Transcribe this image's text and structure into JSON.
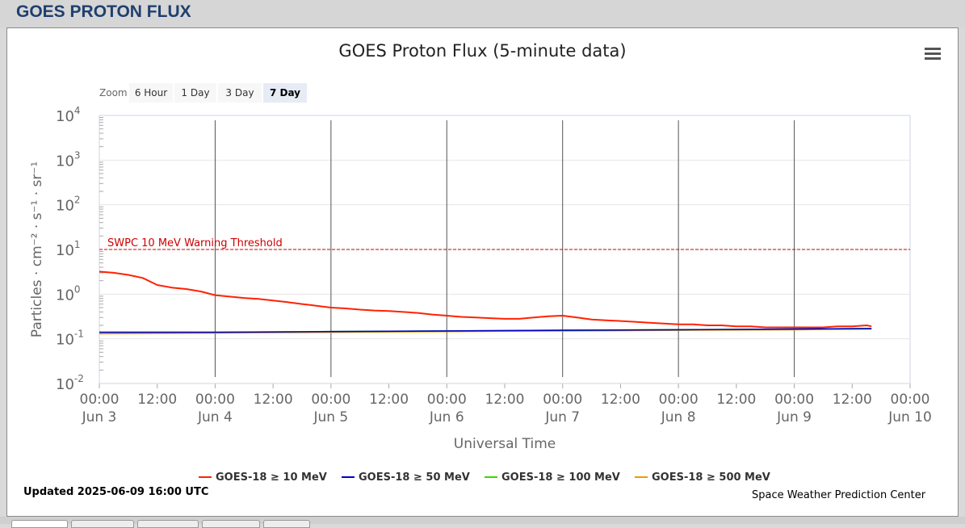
{
  "page": {
    "title": "GOES PROTON FLUX"
  },
  "chart_data": {
    "type": "line",
    "title": "GOES Proton Flux (5-minute data)",
    "xlabel": "Universal Time",
    "ylabel": "Particles · cm⁻² · s⁻¹ · sr⁻¹",
    "yscale": "log",
    "ylim": [
      0.01,
      10000
    ],
    "y_ticks": [
      {
        "value": 0.01,
        "base": "10",
        "exp": "-2"
      },
      {
        "value": 0.1,
        "base": "10",
        "exp": "-1"
      },
      {
        "value": 1,
        "base": "10",
        "exp": "0"
      },
      {
        "value": 10,
        "base": "10",
        "exp": "1"
      },
      {
        "value": 100,
        "base": "10",
        "exp": "2"
      },
      {
        "value": 1000,
        "base": "10",
        "exp": "3"
      },
      {
        "value": 10000,
        "base": "10",
        "exp": "4"
      }
    ],
    "xlim": [
      "2025-06-03 00:00",
      "2025-06-10 00:00"
    ],
    "x_ticks": [
      {
        "time": "2025-06-03 00:00",
        "line1": "00:00",
        "line2": "Jun 3"
      },
      {
        "time": "2025-06-03 12:00",
        "line1": "12:00",
        "line2": ""
      },
      {
        "time": "2025-06-04 00:00",
        "line1": "00:00",
        "line2": "Jun 4"
      },
      {
        "time": "2025-06-04 12:00",
        "line1": "12:00",
        "line2": ""
      },
      {
        "time": "2025-06-05 00:00",
        "line1": "00:00",
        "line2": "Jun 5"
      },
      {
        "time": "2025-06-05 12:00",
        "line1": "12:00",
        "line2": ""
      },
      {
        "time": "2025-06-06 00:00",
        "line1": "00:00",
        "line2": "Jun 6"
      },
      {
        "time": "2025-06-06 12:00",
        "line1": "12:00",
        "line2": ""
      },
      {
        "time": "2025-06-07 00:00",
        "line1": "00:00",
        "line2": "Jun 7"
      },
      {
        "time": "2025-06-07 12:00",
        "line1": "12:00",
        "line2": ""
      },
      {
        "time": "2025-06-08 00:00",
        "line1": "00:00",
        "line2": "Jun 8"
      },
      {
        "time": "2025-06-08 12:00",
        "line1": "12:00",
        "line2": ""
      },
      {
        "time": "2025-06-09 00:00",
        "line1": "00:00",
        "line2": "Jun 9"
      },
      {
        "time": "2025-06-09 12:00",
        "line1": "12:00",
        "line2": ""
      },
      {
        "time": "2025-06-10 00:00",
        "line1": "00:00",
        "line2": "Jun 10"
      }
    ],
    "day_lines": [
      "2025-06-04 00:00",
      "2025-06-05 00:00",
      "2025-06-06 00:00",
      "2025-06-07 00:00",
      "2025-06-08 00:00",
      "2025-06-09 00:00"
    ],
    "threshold": {
      "value": 10,
      "label": "SWPC 10 MeV Warning Threshold",
      "color": "#cc0000"
    },
    "grid": true,
    "legend_position": "bottom",
    "series": [
      {
        "name": "GOES-18 ≥ 10 MeV",
        "color": "#ff2200",
        "x": [
          "2025-06-03 00:00",
          "2025-06-03 03:00",
          "2025-06-03 06:00",
          "2025-06-03 09:00",
          "2025-06-03 12:00",
          "2025-06-03 15:00",
          "2025-06-03 18:00",
          "2025-06-03 21:00",
          "2025-06-04 00:00",
          "2025-06-04 03:00",
          "2025-06-04 06:00",
          "2025-06-04 09:00",
          "2025-06-04 12:00",
          "2025-06-04 15:00",
          "2025-06-04 18:00",
          "2025-06-04 21:00",
          "2025-06-05 00:00",
          "2025-06-05 03:00",
          "2025-06-05 06:00",
          "2025-06-05 09:00",
          "2025-06-05 12:00",
          "2025-06-05 15:00",
          "2025-06-05 18:00",
          "2025-06-05 21:00",
          "2025-06-06 00:00",
          "2025-06-06 03:00",
          "2025-06-06 06:00",
          "2025-06-06 09:00",
          "2025-06-06 12:00",
          "2025-06-06 15:00",
          "2025-06-06 18:00",
          "2025-06-06 21:00",
          "2025-06-07 00:00",
          "2025-06-07 03:00",
          "2025-06-07 06:00",
          "2025-06-07 09:00",
          "2025-06-07 12:00",
          "2025-06-07 15:00",
          "2025-06-07 18:00",
          "2025-06-07 21:00",
          "2025-06-08 00:00",
          "2025-06-08 03:00",
          "2025-06-08 06:00",
          "2025-06-08 09:00",
          "2025-06-08 12:00",
          "2025-06-08 15:00",
          "2025-06-08 18:00",
          "2025-06-08 21:00",
          "2025-06-09 00:00",
          "2025-06-09 03:00",
          "2025-06-09 06:00",
          "2025-06-09 09:00",
          "2025-06-09 12:00",
          "2025-06-09 15:00",
          "2025-06-09 16:00"
        ],
        "y": [
          3.2,
          3.0,
          2.7,
          2.3,
          1.6,
          1.4,
          1.3,
          1.15,
          0.95,
          0.88,
          0.82,
          0.78,
          0.72,
          0.66,
          0.6,
          0.55,
          0.5,
          0.48,
          0.45,
          0.43,
          0.42,
          0.4,
          0.38,
          0.35,
          0.33,
          0.31,
          0.3,
          0.29,
          0.28,
          0.28,
          0.3,
          0.32,
          0.33,
          0.3,
          0.27,
          0.26,
          0.25,
          0.24,
          0.23,
          0.22,
          0.21,
          0.21,
          0.2,
          0.2,
          0.19,
          0.19,
          0.18,
          0.18,
          0.18,
          0.18,
          0.18,
          0.19,
          0.19,
          0.2,
          0.19
        ]
      },
      {
        "name": "GOES-18 ≥ 50 MeV",
        "color": "#0000cc",
        "x": [
          "2025-06-03 00:00",
          "2025-06-04 00:00",
          "2025-06-05 00:00",
          "2025-06-06 00:00",
          "2025-06-07 00:00",
          "2025-06-08 00:00",
          "2025-06-09 00:00",
          "2025-06-09 16:00"
        ],
        "y": [
          0.14,
          0.14,
          0.145,
          0.15,
          0.155,
          0.16,
          0.165,
          0.17
        ]
      },
      {
        "name": "GOES-18 ≥ 100 MeV",
        "color": "#33dd00",
        "x": [
          "2025-06-03 00:00",
          "2025-06-04 00:00",
          "2025-06-05 00:00",
          "2025-06-06 00:00",
          "2025-06-07 00:00",
          "2025-06-08 00:00",
          "2025-06-09 00:00",
          "2025-06-09 16:00"
        ],
        "y": [
          0.14,
          0.14,
          0.145,
          0.15,
          0.155,
          0.16,
          0.165,
          0.17
        ]
      },
      {
        "name": "GOES-18 ≥ 500 MeV",
        "color": "#ee9900",
        "x": [
          "2025-06-03 00:00",
          "2025-06-04 00:00",
          "2025-06-05 00:00",
          "2025-06-06 00:00",
          "2025-06-07 00:00",
          "2025-06-08 00:00",
          "2025-06-09 00:00",
          "2025-06-09 16:00"
        ],
        "y": [
          0.13,
          0.135,
          0.14,
          0.145,
          0.15,
          0.155,
          0.16,
          0.165
        ]
      }
    ]
  },
  "zoom": {
    "label": "Zoom",
    "buttons": [
      "6 Hour",
      "1 Day",
      "3 Day",
      "7 Day"
    ],
    "active": "7 Day"
  },
  "menu": {
    "icon": "hamburger-menu-icon"
  },
  "footer": {
    "updated": "Updated 2025-06-09 16:00 UTC",
    "credit": "Space Weather Prediction Center"
  }
}
